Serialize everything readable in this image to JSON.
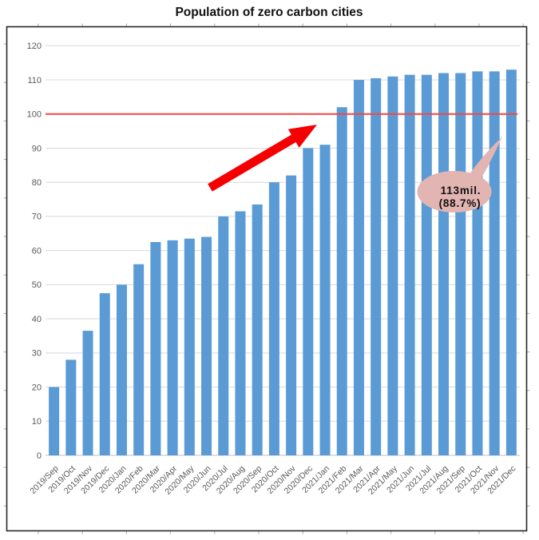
{
  "title": "Population of zero carbon cities",
  "chart_data": {
    "type": "bar",
    "title": "Population of zero carbon cities",
    "categories": [
      "2019/Sep",
      "2019/Oct",
      "2019/Nov",
      "2019/Dec",
      "2020/Jan",
      "2020/Feb",
      "2020/Mar",
      "2020/Apr",
      "2020/May",
      "2020/Jun",
      "2020/Jul",
      "2020/Aug",
      "2020/Sep",
      "2020/Oct",
      "2020/Nov",
      "2020/Dec",
      "2021/Jan",
      "2021/Feb",
      "2021/Mar",
      "2021/Apr",
      "2021/May",
      "2021/Jun",
      "2021/Jul",
      "2021/Aug",
      "2021/Sep",
      "2021/Oct",
      "2021/Nov",
      "2021/Dec"
    ],
    "values": [
      20,
      28,
      36.5,
      47.5,
      50,
      56,
      62.5,
      63,
      63.5,
      64,
      70,
      71.5,
      73.5,
      80,
      82,
      90,
      91,
      102,
      110,
      110.5,
      111,
      111.5,
      111.5,
      112,
      112,
      112.5,
      112.5,
      113
    ],
    "xlabel": "",
    "ylabel": "",
    "ylim": [
      0,
      120
    ],
    "ytick_step": 10,
    "grid": true,
    "legend": "none",
    "colors": {
      "bar": "#5b9bd5",
      "gridline": "#d9d9d9",
      "baseline": "#bfbfbf",
      "axis_text": "#595959",
      "frame": "#262626",
      "outer_tick": "#ababab",
      "reference_line": "#ef4a49",
      "arrow": "#f40000",
      "callout_fill": "#e2b4b2"
    },
    "reference_line": {
      "value": 100
    },
    "annotations": {
      "arrow": {
        "name": "growth-arrow",
        "points_toward": "100 line"
      },
      "callout": {
        "line1": "113mil.",
        "line2": "(88.7%)",
        "points_to": "2021/Dec"
      }
    }
  }
}
